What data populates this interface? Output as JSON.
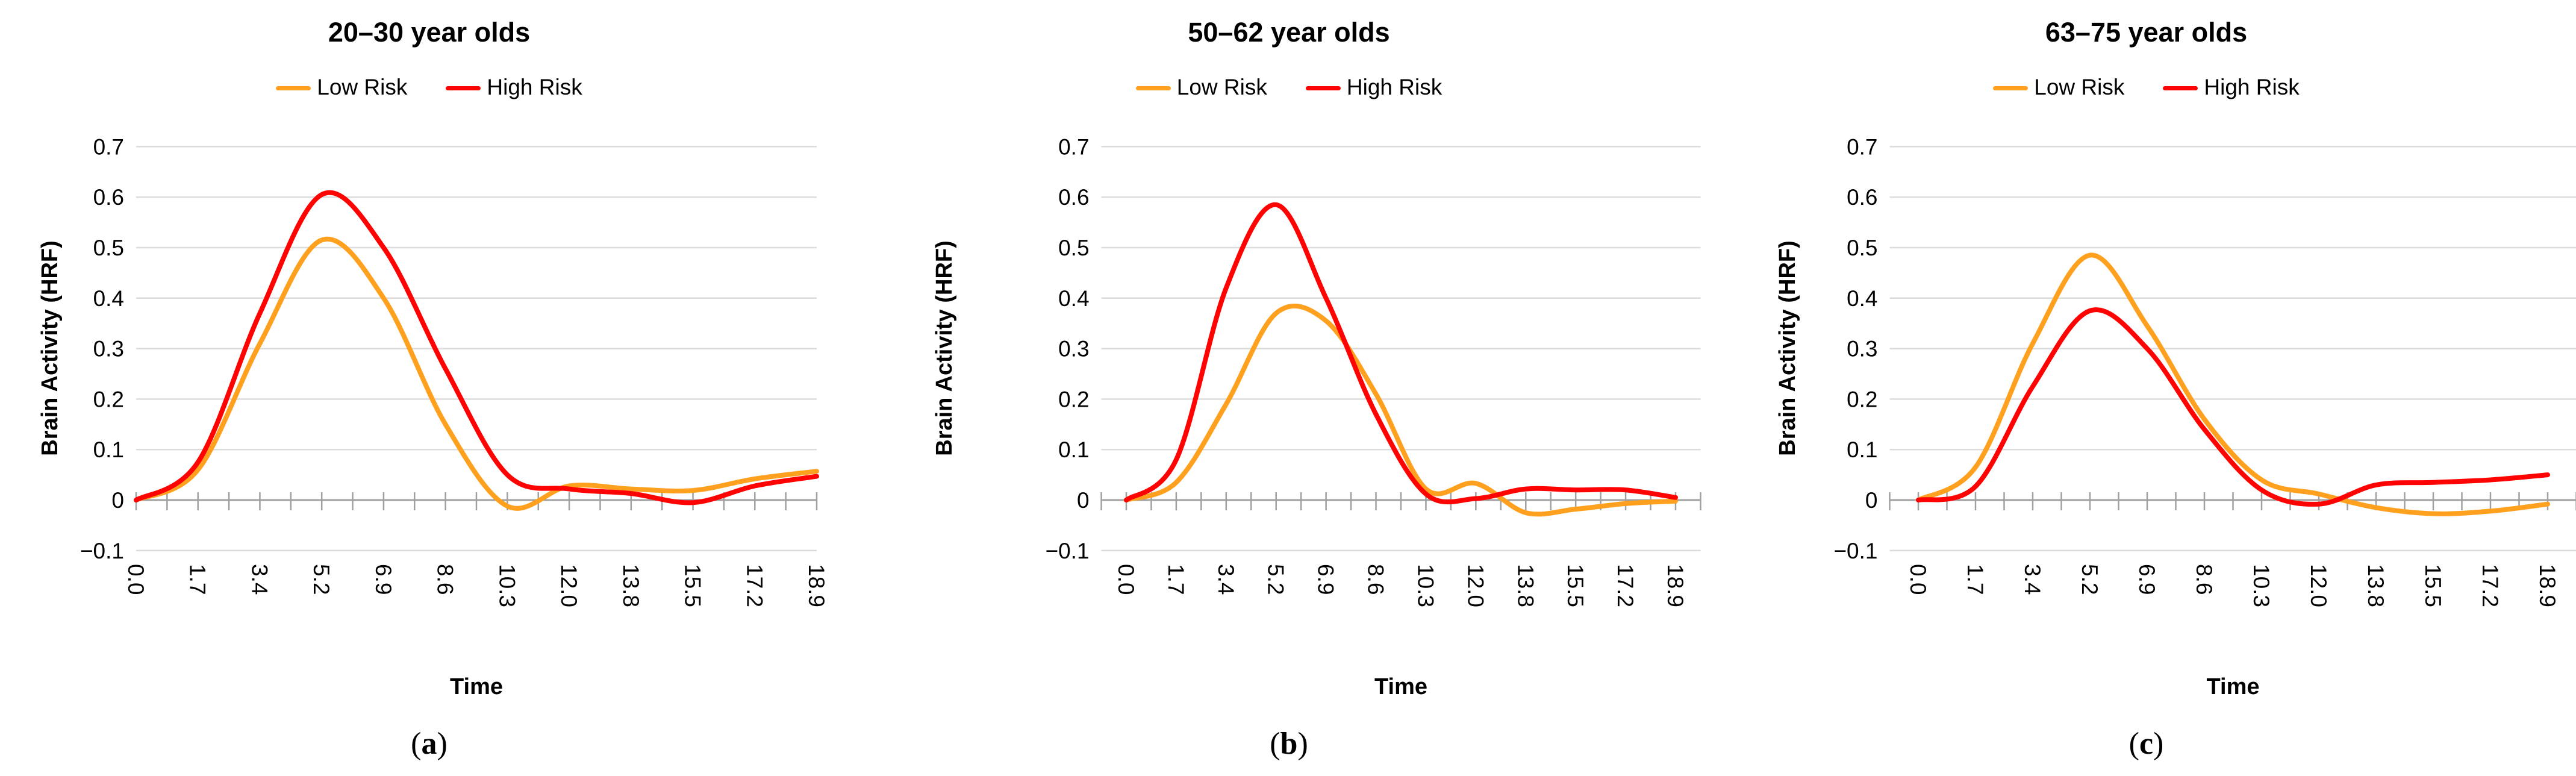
{
  "figure": {
    "legend_labels": [
      "Low Risk",
      "High Risk"
    ],
    "colors": {
      "low_risk": "#FFA01E",
      "high_risk": "#FF0202",
      "gridline": "#DCDCDC",
      "axis": "#A0A0A0",
      "text": "#000000"
    }
  },
  "chart_data": [
    {
      "type": "line",
      "title": "20–30 year olds",
      "caption_letter": "a",
      "xlabel": "Time",
      "ylabel": "Brain Activity (HRF)",
      "categories": [
        "0.0",
        "1.7",
        "3.4",
        "5.2",
        "6.9",
        "8.6",
        "10.3",
        "12.0",
        "13.8",
        "15.5",
        "17.2",
        "18.9"
      ],
      "ylim": [
        -0.1,
        0.7
      ],
      "ytick_values": [
        0.7,
        0.6,
        0.5,
        0.4,
        0.3,
        0.2,
        0.1,
        0,
        -0.1
      ],
      "ytick_labels": [
        "0.7",
        "0.6",
        "0.5",
        "0.4",
        "0.3",
        "0.2",
        "0.1",
        "0",
        "−0.1"
      ],
      "grid": true,
      "legend_position": "top",
      "series": [
        {
          "name": "Low Risk",
          "color": "#FFA01E",
          "values": [
            0.0,
            0.06,
            0.31,
            0.515,
            0.4,
            0.15,
            -0.012,
            0.028,
            0.022,
            0.019,
            0.042,
            0.057
          ]
        },
        {
          "name": "High Risk",
          "color": "#FF0202",
          "values": [
            0.0,
            0.075,
            0.37,
            0.605,
            0.5,
            0.26,
            0.05,
            0.022,
            0.013,
            -0.005,
            0.028,
            0.047
          ]
        }
      ]
    },
    {
      "type": "line",
      "title": "50–62 year olds",
      "caption_letter": "b",
      "xlabel": "Time",
      "ylabel": "Brain Activity (HRF)",
      "categories": [
        "0.0",
        "1.7",
        "3.4",
        "5.2",
        "6.9",
        "8.6",
        "10.3",
        "12.0",
        "13.8",
        "15.5",
        "17.2",
        "18.9"
      ],
      "ylim": [
        -0.1,
        0.7
      ],
      "ytick_values": [
        0.7,
        0.6,
        0.5,
        0.4,
        0.3,
        0.2,
        0.1,
        0,
        -0.1
      ],
      "ytick_labels": [
        "0.7",
        "0.6",
        "0.5",
        "0.4",
        "0.3",
        "0.2",
        "0.1",
        "0",
        "−0.1"
      ],
      "grid": true,
      "legend_position": "top",
      "series": [
        {
          "name": "Low Risk",
          "color": "#FFA01E",
          "values": [
            0.0,
            0.035,
            0.19,
            0.37,
            0.355,
            0.21,
            0.022,
            0.033,
            -0.025,
            -0.018,
            -0.007,
            -0.002
          ]
        },
        {
          "name": "High Risk",
          "color": "#FF0202",
          "values": [
            0.0,
            0.08,
            0.42,
            0.585,
            0.4,
            0.17,
            0.012,
            0.003,
            0.022,
            0.02,
            0.02,
            0.005
          ]
        }
      ]
    },
    {
      "type": "line",
      "title": "63–75 year olds",
      "caption_letter": "c",
      "xlabel": "Time",
      "ylabel": "Brain Activity (HRF)",
      "categories": [
        "0.0",
        "1.7",
        "3.4",
        "5.2",
        "6.9",
        "8.6",
        "10.3",
        "12.0",
        "13.8",
        "15.5",
        "17.2",
        "18.9"
      ],
      "ylim": [
        -0.1,
        0.7
      ],
      "ytick_values": [
        0.7,
        0.6,
        0.5,
        0.4,
        0.3,
        0.2,
        0.1,
        0,
        -0.1
      ],
      "ytick_labels": [
        "0.7",
        "0.6",
        "0.5",
        "0.4",
        "0.3",
        "0.2",
        "0.1",
        "0",
        "−0.1"
      ],
      "grid": true,
      "legend_position": "top",
      "series": [
        {
          "name": "Low Risk",
          "color": "#FFA01E",
          "values": [
            0.0,
            0.065,
            0.31,
            0.485,
            0.345,
            0.16,
            0.04,
            0.012,
            -0.015,
            -0.027,
            -0.022,
            -0.008
          ]
        },
        {
          "name": "High Risk",
          "color": "#FF0202",
          "values": [
            0.0,
            0.027,
            0.225,
            0.375,
            0.3,
            0.14,
            0.02,
            -0.008,
            0.03,
            0.035,
            0.04,
            0.05
          ]
        }
      ]
    }
  ]
}
